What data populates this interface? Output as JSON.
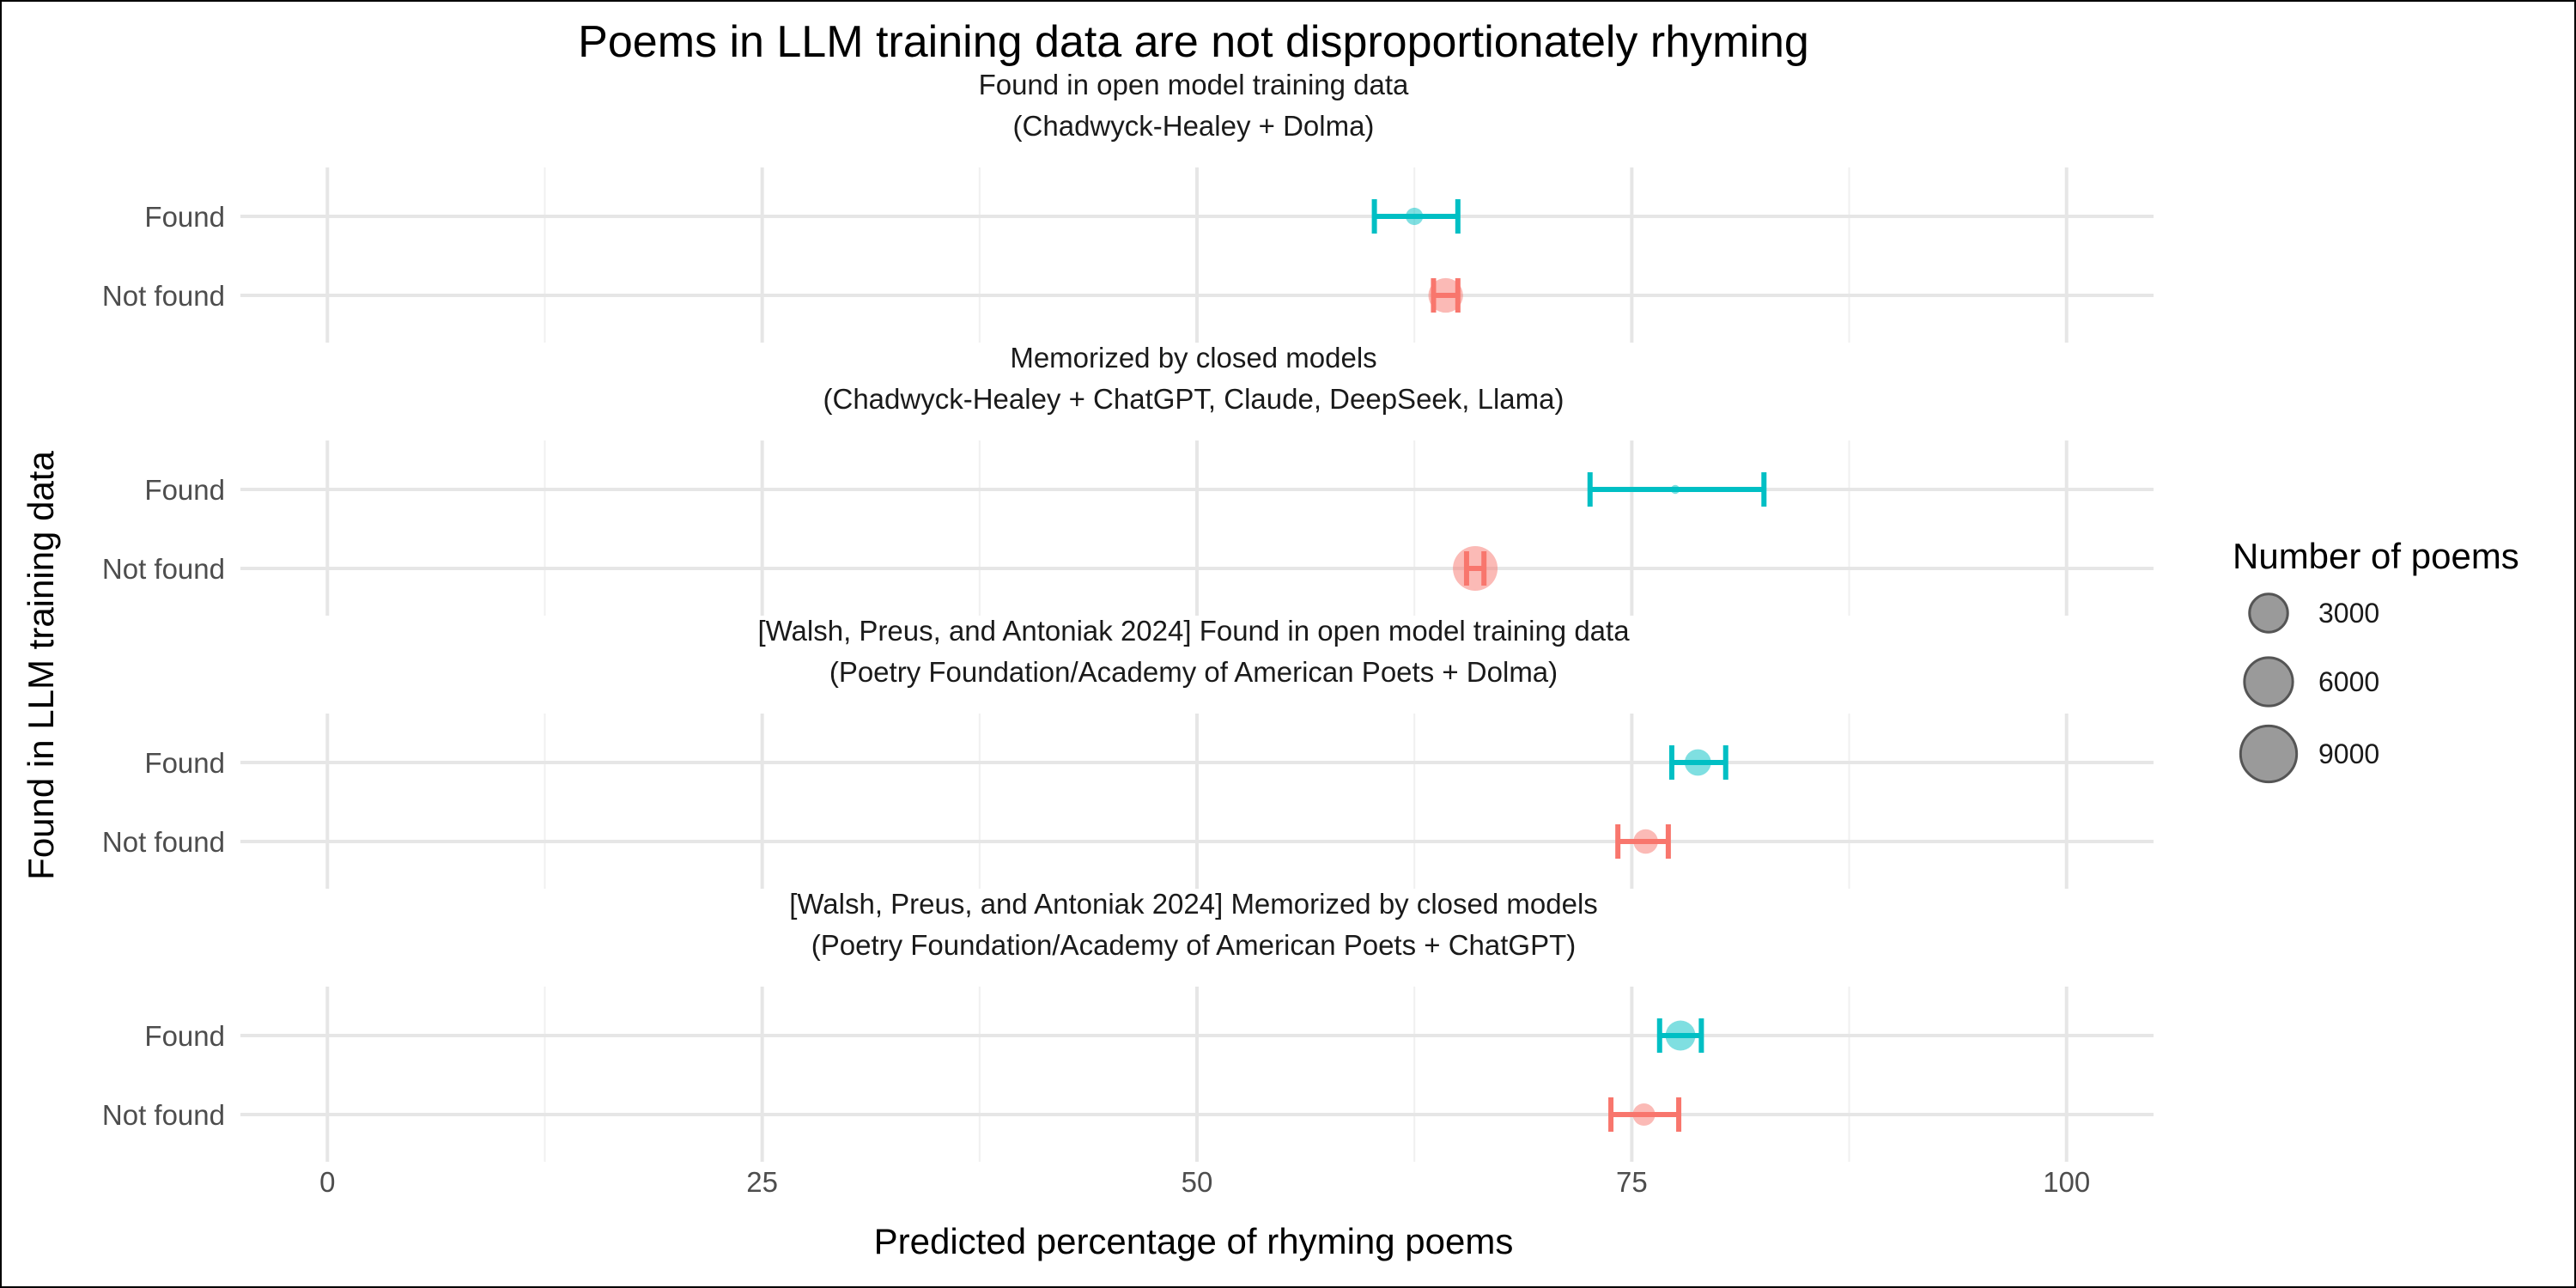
{
  "chart_data": {
    "type": "scatter",
    "title": "Poems in LLM training data are not disproportionately rhyming",
    "xlabel": "Predicted percentage of rhyming poems",
    "ylabel": "Found in LLM training data",
    "xlim": [
      -5,
      105
    ],
    "x_ticks": [
      0,
      25,
      50,
      75,
      100
    ],
    "categories": [
      "Found",
      "Not found"
    ],
    "colors": {
      "Found": "#00BFC4",
      "Not found": "#F8766D"
    },
    "legend": {
      "title": "Number of poems",
      "placement": "right",
      "entries": [
        {
          "label": "3000",
          "value": 3000
        },
        {
          "label": "6000",
          "value": 6000
        },
        {
          "label": "9000",
          "value": 9000
        }
      ]
    },
    "panels": [
      {
        "title_line1": "Found in open model training data",
        "title_line2": "(Chadwyck-Healey + Dolma)",
        "points": [
          {
            "category": "Found",
            "estimate": 62.5,
            "lower": 60.2,
            "upper": 65.0,
            "n": 1500
          },
          {
            "category": "Not found",
            "estimate": 64.3,
            "lower": 63.6,
            "upper": 65.0,
            "n": 6000
          }
        ]
      },
      {
        "title_line1": "Memorized by closed models",
        "title_line2": "(Chadwyck-Healey + ChatGPT, Claude, DeepSeek, Llama)",
        "points": [
          {
            "category": "Found",
            "estimate": 77.5,
            "lower": 72.6,
            "upper": 82.6,
            "n": 400
          },
          {
            "category": "Not found",
            "estimate": 66.0,
            "lower": 65.5,
            "upper": 66.5,
            "n": 10000
          }
        ]
      },
      {
        "title_line1": "[Walsh, Preus, and Antoniak 2024] Found in open model training data",
        "title_line2": "(Poetry Foundation/Academy of American Poets + Dolma)",
        "points": [
          {
            "category": "Found",
            "estimate": 78.8,
            "lower": 77.3,
            "upper": 80.4,
            "n": 3500
          },
          {
            "category": "Not found",
            "estimate": 75.8,
            "lower": 74.2,
            "upper": 77.1,
            "n": 3000
          }
        ]
      },
      {
        "title_line1": "[Walsh, Preus, and Antoniak 2024] Memorized by closed models",
        "title_line2": "(Poetry Foundation/Academy of American Poets + ChatGPT)",
        "points": [
          {
            "category": "Found",
            "estimate": 77.8,
            "lower": 76.6,
            "upper": 79.0,
            "n": 4500
          },
          {
            "category": "Not found",
            "estimate": 75.7,
            "lower": 73.8,
            "upper": 77.7,
            "n": 2500
          }
        ]
      }
    ]
  }
}
